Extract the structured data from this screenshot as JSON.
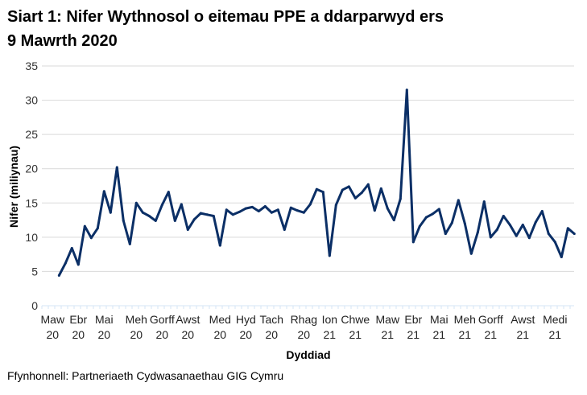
{
  "title": [
    "Siart 1: Nifer Wythnosol o eitemau PPE a ddarparwyd ers",
    "9 Mawrth 2020"
  ],
  "source": "Ffynhonnell: Partneriaeth Cydwasanaethau GIG Cymru",
  "chart_data": {
    "type": "line",
    "title": "Siart 1: Nifer Wythnosol o eitemau PPE a ddarparwyd ers 9 Mawrth 2020",
    "xlabel": "Dyddiad",
    "ylabel": "Nifer (miliynau)",
    "ylim": [
      0,
      35
    ],
    "yticks": [
      "0",
      "5",
      "10",
      "15",
      "20",
      "25",
      "30",
      "35"
    ],
    "grid": "horizontal",
    "legend": "none",
    "line_color": "#0b2f66",
    "x": [
      "2020-03-09",
      "2020-03-16",
      "2020-03-23",
      "2020-03-30",
      "2020-04-06",
      "2020-04-13",
      "2020-04-20",
      "2020-04-27",
      "2020-05-04",
      "2020-05-11",
      "2020-05-18",
      "2020-05-25",
      "2020-06-01",
      "2020-06-08",
      "2020-06-15",
      "2020-06-22",
      "2020-06-29",
      "2020-07-06",
      "2020-07-13",
      "2020-07-20",
      "2020-07-27",
      "2020-08-03",
      "2020-08-10",
      "2020-08-17",
      "2020-08-24",
      "2020-08-31",
      "2020-09-07",
      "2020-09-14",
      "2020-09-21",
      "2020-09-28",
      "2020-10-05",
      "2020-10-12",
      "2020-10-19",
      "2020-10-26",
      "2020-11-02",
      "2020-11-09",
      "2020-11-16",
      "2020-11-23",
      "2020-11-30",
      "2020-12-07",
      "2020-12-14",
      "2020-12-21",
      "2020-12-28",
      "2021-01-04",
      "2021-01-11",
      "2021-01-18",
      "2021-01-25",
      "2021-02-01",
      "2021-02-08",
      "2021-02-15",
      "2021-02-22",
      "2021-03-01",
      "2021-03-08",
      "2021-03-15",
      "2021-03-22",
      "2021-03-29",
      "2021-04-05",
      "2021-04-12",
      "2021-04-19",
      "2021-04-26",
      "2021-05-03",
      "2021-05-10",
      "2021-05-17",
      "2021-05-24",
      "2021-05-31",
      "2021-06-07",
      "2021-06-14",
      "2021-06-21",
      "2021-06-28",
      "2021-07-05",
      "2021-07-12",
      "2021-07-19",
      "2021-07-26",
      "2021-08-02",
      "2021-08-09",
      "2021-08-16",
      "2021-08-23",
      "2021-08-30",
      "2021-09-06",
      "2021-09-13",
      "2021-09-20"
    ],
    "values": [
      4.4,
      6.2,
      8.4,
      6.0,
      11.6,
      9.9,
      11.3,
      16.7,
      13.6,
      20.2,
      12.4,
      9.0,
      15.0,
      13.6,
      13.1,
      12.4,
      14.7,
      16.6,
      12.4,
      14.8,
      11.1,
      12.6,
      13.5,
      13.3,
      13.1,
      8.8,
      14.0,
      13.3,
      13.7,
      14.2,
      14.4,
      13.8,
      14.5,
      13.6,
      14.0,
      11.1,
      14.3,
      13.9,
      13.6,
      14.8,
      17.0,
      16.6,
      7.3,
      14.7,
      16.9,
      17.4,
      15.7,
      16.5,
      17.7,
      13.9,
      17.1,
      14.2,
      12.5,
      15.6,
      31.5,
      9.3,
      11.6,
      12.9,
      13.4,
      14.1,
      10.5,
      12.1,
      15.4,
      12.0,
      7.6,
      10.7,
      15.2,
      10.0,
      11.1,
      13.1,
      11.8,
      10.2,
      11.8,
      9.9,
      12.2,
      13.8,
      10.5,
      9.3,
      7.1,
      11.3,
      10.5
    ],
    "xticks": [
      {
        "date": "2020-03-02",
        "label": [
          "Maw",
          "20"
        ]
      },
      {
        "date": "2020-03-30",
        "label": [
          "Ebr",
          "20"
        ]
      },
      {
        "date": "2020-04-27",
        "label": [
          "Mai",
          "20"
        ]
      },
      {
        "date": "2020-06-01",
        "label": [
          "Meh",
          "20"
        ]
      },
      {
        "date": "2020-06-29",
        "label": [
          "Gorff",
          "20"
        ]
      },
      {
        "date": "2020-07-27",
        "label": [
          "Awst",
          "20"
        ]
      },
      {
        "date": "2020-08-31",
        "label": [
          "Med",
          "20"
        ]
      },
      {
        "date": "2020-09-28",
        "label": [
          "Hyd",
          "20"
        ]
      },
      {
        "date": "2020-10-26",
        "label": [
          "Tach",
          "20"
        ]
      },
      {
        "date": "2020-11-30",
        "label": [
          "Rhag",
          "20"
        ]
      },
      {
        "date": "2020-12-28",
        "label": [
          "Ion",
          "21"
        ]
      },
      {
        "date": "2021-01-25",
        "label": [
          "Chwe",
          "21"
        ]
      },
      {
        "date": "2021-03-01",
        "label": [
          "Maw",
          "21"
        ]
      },
      {
        "date": "2021-03-29",
        "label": [
          "Ebr",
          "21"
        ]
      },
      {
        "date": "2021-04-26",
        "label": [
          "Mai",
          "21"
        ]
      },
      {
        "date": "2021-05-24",
        "label": [
          "Meh",
          "21"
        ]
      },
      {
        "date": "2021-06-21",
        "label": [
          "Gorff",
          "21"
        ]
      },
      {
        "date": "2021-07-26",
        "label": [
          "Awst",
          "21"
        ]
      },
      {
        "date": "2021-08-30",
        "label": [
          "Medi",
          "21"
        ]
      }
    ]
  }
}
